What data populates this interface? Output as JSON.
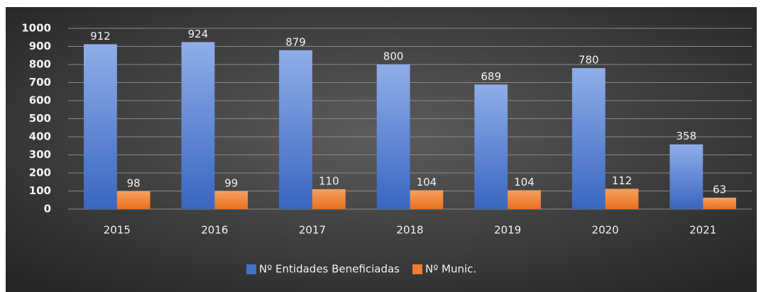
{
  "chart_data": {
    "type": "bar",
    "categories": [
      "2015",
      "2016",
      "2017",
      "2018",
      "2019",
      "2020",
      "2021"
    ],
    "series": [
      {
        "name": "Nº Entidades Beneficiadas",
        "color": "#4472c4",
        "values": [
          912,
          924,
          879,
          800,
          689,
          780,
          358
        ]
      },
      {
        "name": "Nº Munic.",
        "color": "#ed7d31",
        "values": [
          98,
          99,
          110,
          104,
          104,
          112,
          63
        ]
      }
    ],
    "ylim": [
      0,
      1000
    ],
    "yticks": [
      0,
      100,
      200,
      300,
      400,
      500,
      600,
      700,
      800,
      900,
      1000
    ],
    "grid": true,
    "legend": "bottom"
  }
}
